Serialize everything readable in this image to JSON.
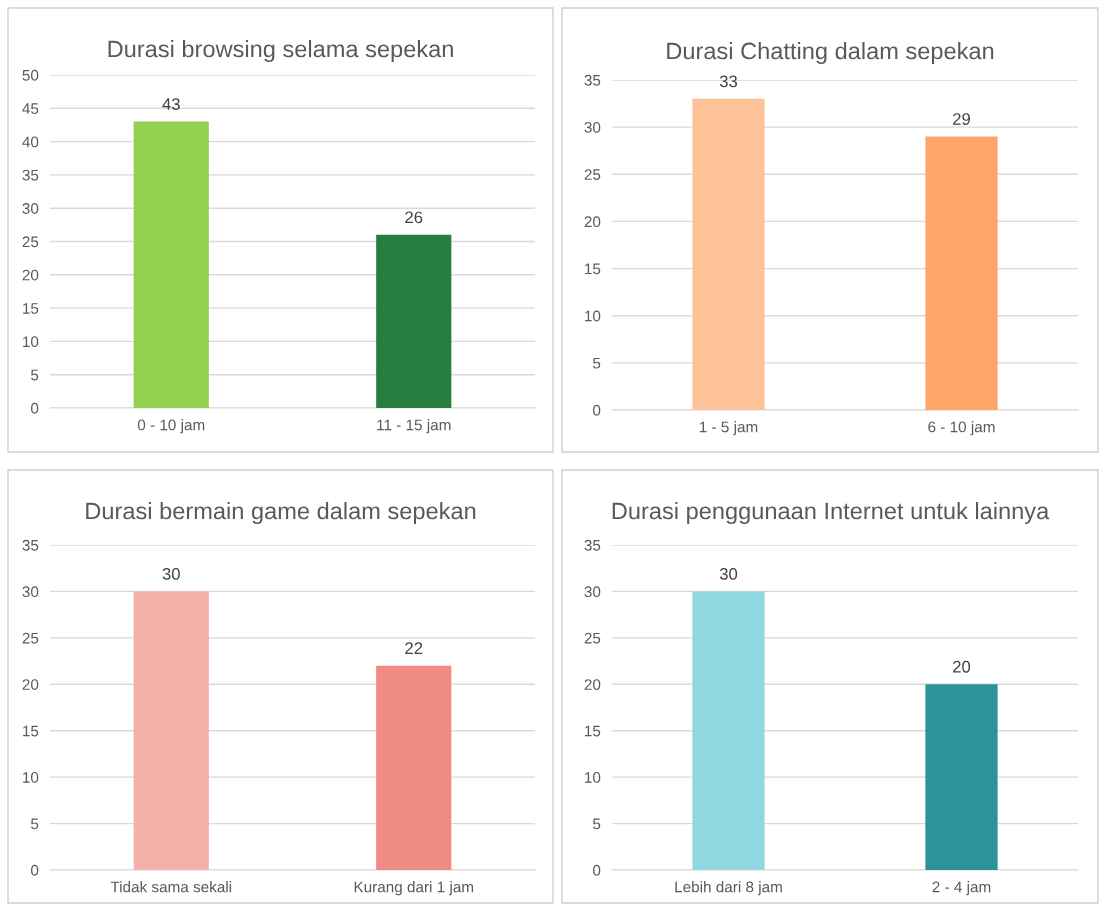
{
  "chart_data": [
    {
      "type": "bar",
      "title": "Durasi browsing selama sepekan",
      "categories": [
        "0 - 10 jam",
        "11 - 15 jam"
      ],
      "values": [
        43,
        26
      ],
      "colors": [
        "#92d050",
        "#267e3e"
      ],
      "ylim": [
        0,
        50
      ],
      "yticks": [
        0,
        5,
        10,
        15,
        20,
        25,
        30,
        35,
        40,
        45,
        50
      ],
      "grid": "y",
      "data_labels": true
    },
    {
      "type": "bar",
      "title": "Durasi Chatting dalam sepekan",
      "categories": [
        "1 - 5 jam",
        "6 - 10 jam"
      ],
      "values": [
        33,
        29
      ],
      "colors": [
        "#fdc297",
        "#fea66a"
      ],
      "ylim": [
        0,
        35
      ],
      "yticks": [
        0,
        5,
        10,
        15,
        20,
        25,
        30,
        35
      ],
      "grid": "y",
      "data_labels": true
    },
    {
      "type": "bar",
      "title": "Durasi bermain game dalam sepekan",
      "categories": [
        "Tidak sama sekali",
        "Kurang dari 1 jam"
      ],
      "values": [
        30,
        22
      ],
      "colors": [
        "#f4b1aa",
        "#f08b83"
      ],
      "ylim": [
        0,
        35
      ],
      "yticks": [
        0,
        5,
        10,
        15,
        20,
        25,
        30,
        35
      ],
      "grid": "y",
      "data_labels": true
    },
    {
      "type": "bar",
      "title": "Durasi penggunaan Internet untuk lainnya",
      "categories": [
        "Lebih dari 8 jam",
        "2 - 4 jam"
      ],
      "values": [
        30,
        20
      ],
      "colors": [
        "#8fd8e0",
        "#2b9399"
      ],
      "ylim": [
        0,
        35
      ],
      "yticks": [
        0,
        5,
        10,
        15,
        20,
        25,
        30,
        35
      ],
      "grid": "y",
      "data_labels": true
    }
  ]
}
